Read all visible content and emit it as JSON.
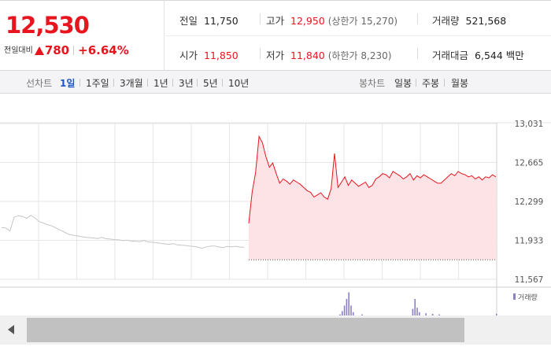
{
  "quote": {
    "price": "12,530",
    "change_label": "전일대비",
    "change_abs": "780",
    "change_pct": "+6.64%",
    "prev_close": {
      "label": "전일",
      "value": "11,750"
    },
    "open": {
      "label": "시가",
      "value": "11,850"
    },
    "high": {
      "label": "고가",
      "value": "12,950",
      "sub": "(상한가 15,270)"
    },
    "low": {
      "label": "저가",
      "value": "11,840",
      "sub": "(하한가 8,230)"
    },
    "volume": {
      "label": "거래량",
      "value": "521,568"
    },
    "turnover": {
      "label": "거래대금",
      "value": "6,544 백만"
    }
  },
  "periods": {
    "label": "선차트",
    "options": [
      "1일",
      "1주일",
      "3개월",
      "1년",
      "3년",
      "5년",
      "10년"
    ],
    "active": "1일"
  },
  "candles": {
    "label": "봉차트",
    "options": [
      "일봉",
      "주봉",
      "월봉"
    ]
  },
  "colors": {
    "up": "#e8141e",
    "fill": "#fde3e5",
    "prev_line": "#c6c6c6",
    "volume": "#8c7fc2",
    "active_tab": "#1d54c8"
  },
  "chart_data": {
    "type": "line",
    "y_ticks": [
      "13,031",
      "12,665",
      "12,299",
      "11,933",
      "11,567"
    ],
    "ylim": [
      11567,
      13031
    ],
    "prev_close": 11750,
    "grid": true,
    "volume_legend": "거래량",
    "series": [
      {
        "values": [
          12053,
          12050,
          12020,
          12150,
          12165,
          12158,
          12140,
          12168,
          12143,
          12110,
          12095,
          12080,
          12068,
          12050,
          12030,
          12011,
          11990,
          11982,
          11975,
          11968,
          11962,
          11958,
          11955,
          11950,
          11960,
          11948,
          11945,
          11940,
          11938,
          11930,
          11935,
          11928,
          11925,
          11920,
          11932,
          11918,
          11915,
          11910,
          11905,
          11900,
          11895,
          11902,
          11890,
          11888,
          11885,
          11878,
          11875,
          11868,
          11858,
          11872,
          11878,
          11880,
          11870,
          11865,
          11875,
          11872,
          11877,
          11870,
          11868
        ]
      },
      {
        "values": [
          12093,
          12390,
          12570,
          12910,
          12850,
          12720,
          12620,
          12660,
          12560,
          12470,
          12510,
          12490,
          12460,
          12500,
          12480,
          12460,
          12430,
          12400,
          12385,
          12340,
          12360,
          12380,
          12340,
          12320,
          12420,
          12750,
          12430,
          12480,
          12530,
          12450,
          12500,
          12470,
          12440,
          12460,
          12480,
          12430,
          12450,
          12510,
          12530,
          12560,
          12550,
          12520,
          12580,
          12560,
          12540,
          12510,
          12530,
          12560,
          12500,
          12540,
          12520,
          12550,
          12530,
          12510,
          12490,
          12470,
          12470,
          12500,
          12530,
          12560,
          12540,
          12580,
          12560,
          12550,
          12530,
          12540,
          12510,
          12530,
          12500,
          12530,
          12520,
          12550,
          12530
        ]
      }
    ],
    "volume": [
      0,
      0,
      0,
      0,
      0,
      0,
      0,
      0,
      0,
      0,
      0,
      0,
      0,
      0,
      0,
      0,
      0,
      0,
      0,
      0,
      0,
      0,
      0,
      0,
      0,
      0,
      0,
      0,
      0,
      0,
      0,
      0,
      0,
      0,
      0,
      0,
      0,
      0,
      0,
      0,
      0,
      0,
      0,
      0,
      0,
      0,
      0,
      0,
      0,
      0,
      0,
      0,
      0,
      0,
      0,
      0,
      0,
      0,
      0,
      0,
      0,
      0,
      0,
      0,
      2,
      8,
      18,
      30,
      42,
      18,
      6,
      0,
      0,
      0,
      2,
      0,
      0,
      0,
      0,
      0,
      0,
      0,
      0,
      0,
      0,
      0,
      0,
      0,
      0,
      0,
      0,
      0,
      0,
      0,
      0,
      0,
      0,
      12,
      30,
      14,
      6,
      0,
      0,
      4,
      0,
      0,
      3,
      0,
      0,
      2,
      0,
      0,
      0,
      0,
      0,
      0,
      0,
      0,
      0,
      0,
      0,
      0,
      0,
      0,
      0,
      0,
      0,
      0,
      0,
      0,
      0,
      0,
      0,
      0,
      0,
      3
    ]
  }
}
